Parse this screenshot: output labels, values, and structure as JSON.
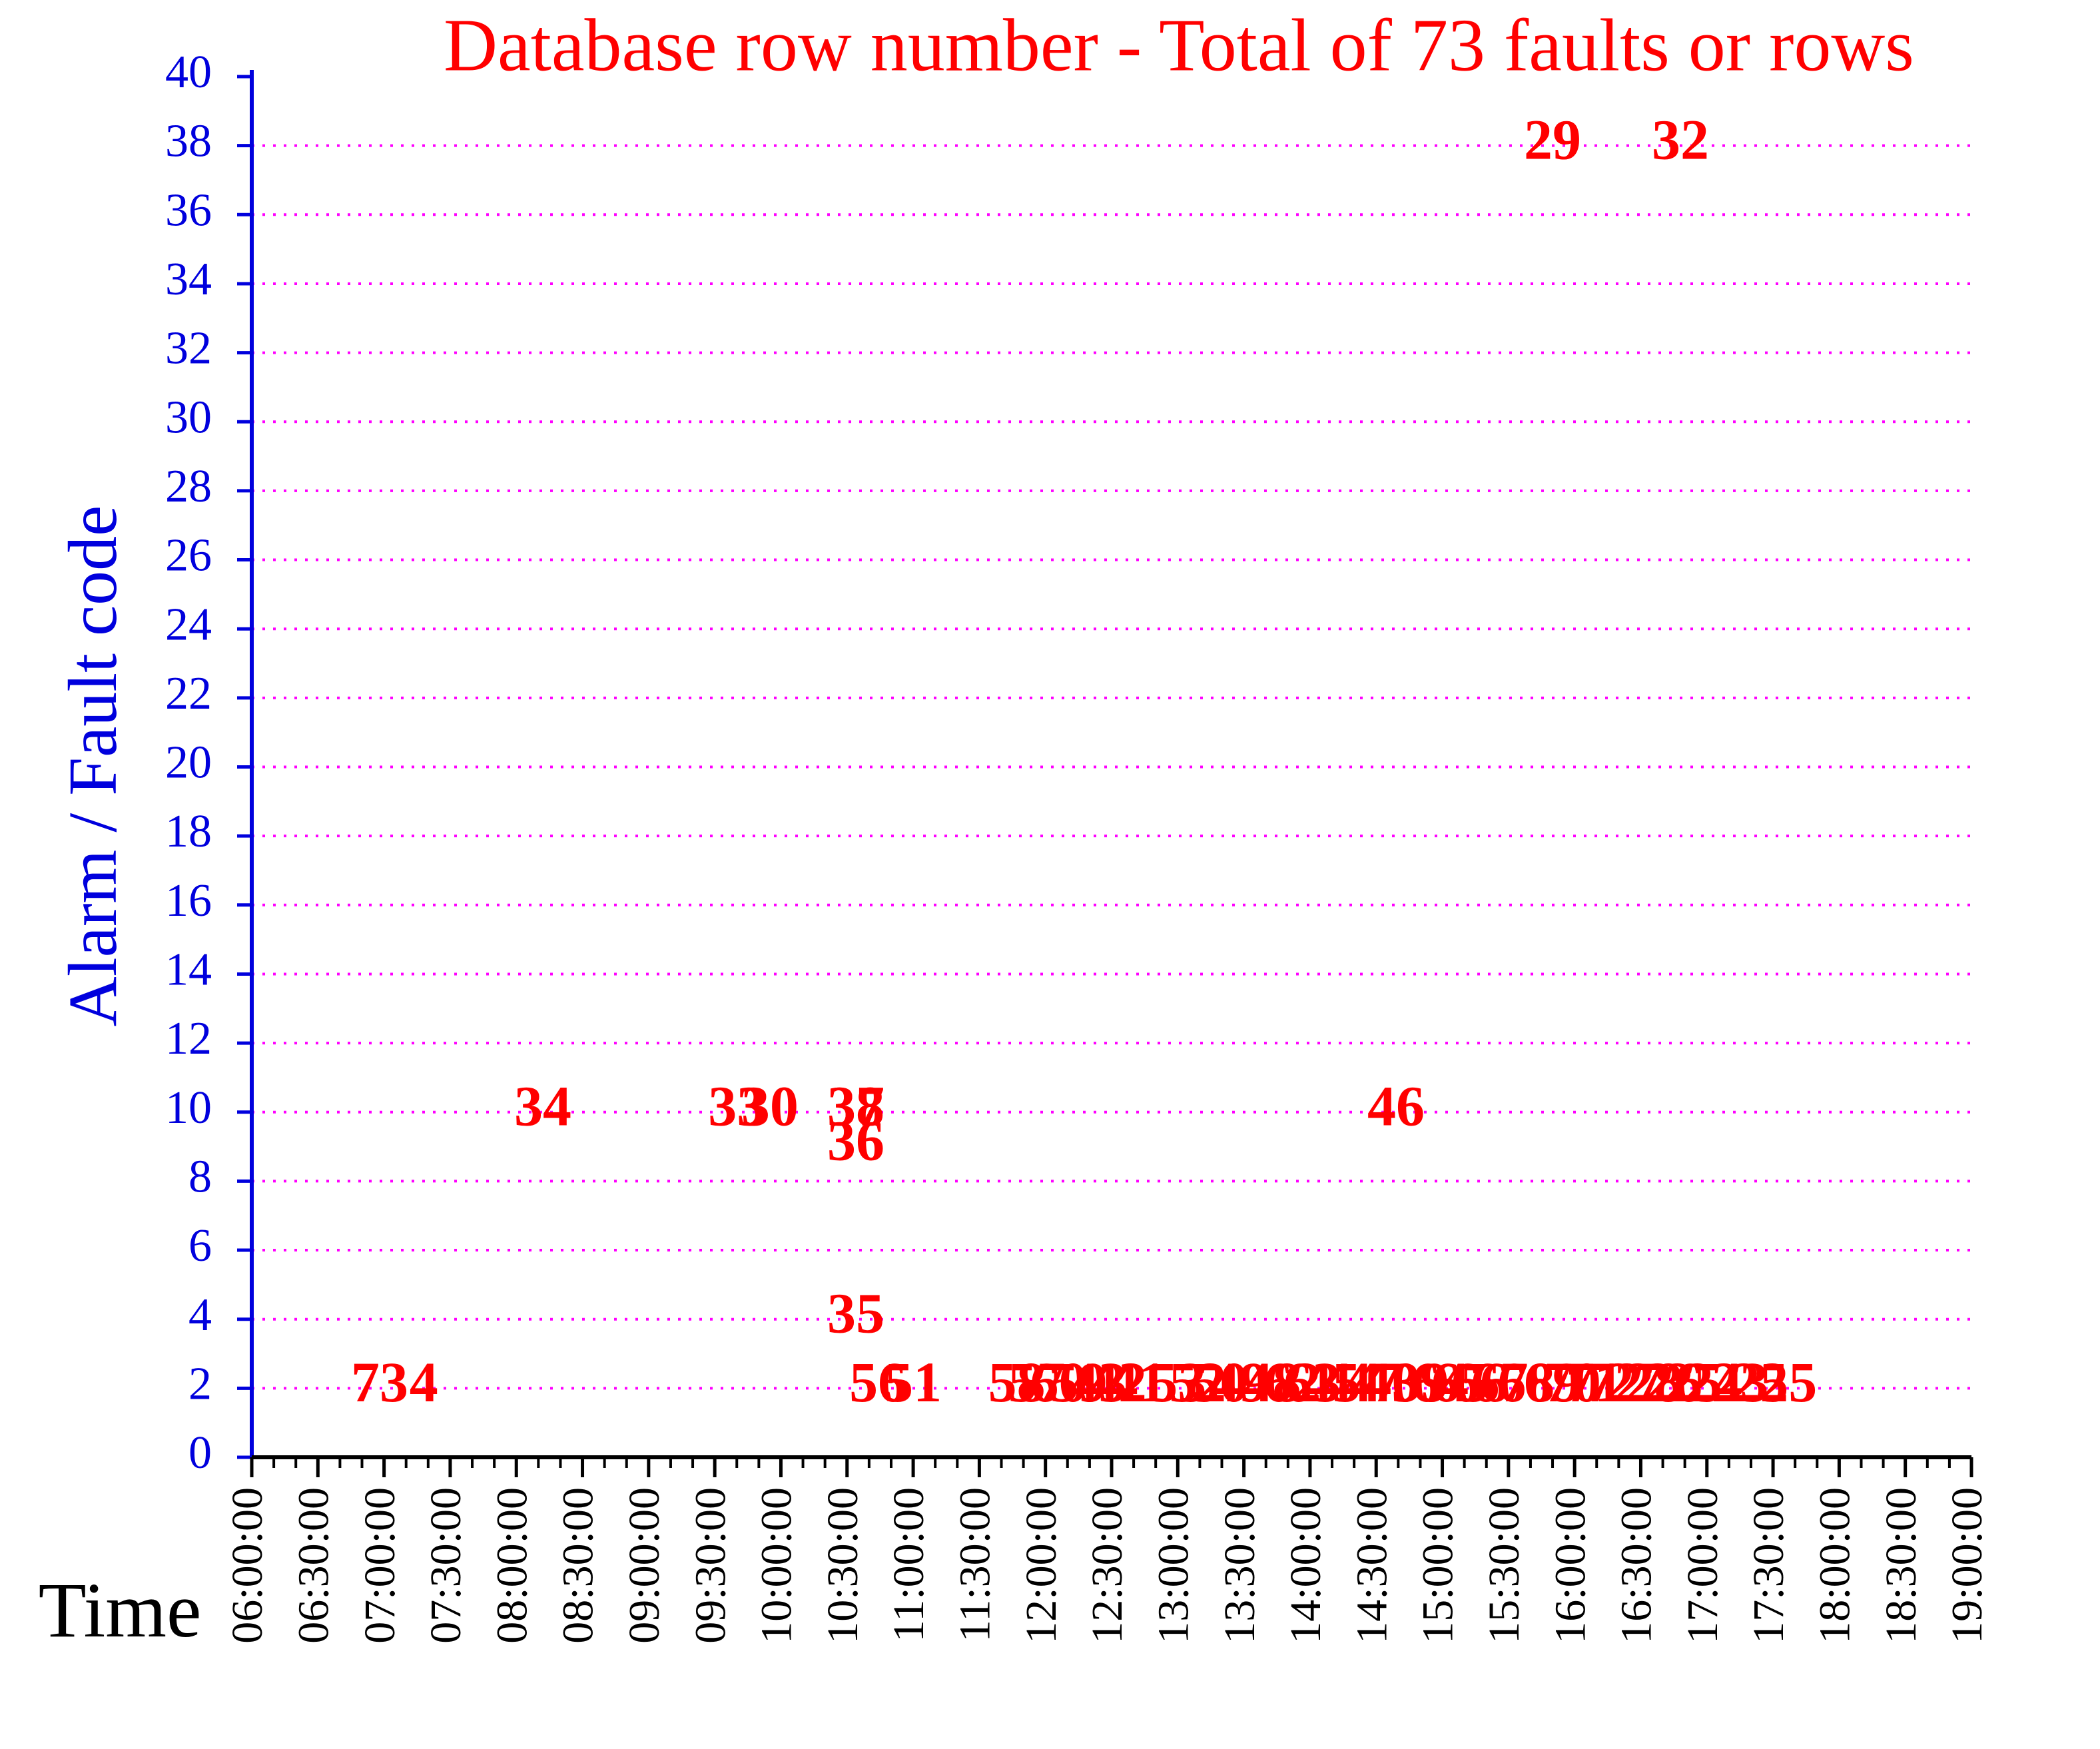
{
  "chart_data": {
    "type": "scatter",
    "title": "Database row number - Total of 73 faults or rows",
    "x_label": "Time",
    "y_label": "Alarm / Fault code",
    "label_color": "#ff0000",
    "axis_color": "#0000dd",
    "grid_color": "#ff00ff",
    "grid": true,
    "xlim": [
      "06:00:00",
      "19:00:00"
    ],
    "xticks": [
      "06:00:00",
      "06:30:00",
      "07:00:00",
      "07:30:00",
      "08:00:00",
      "08:30:00",
      "09:00:00",
      "09:30:00",
      "10:00:00",
      "10:30:00",
      "11:00:00",
      "11:30:00",
      "12:00:00",
      "12:30:00",
      "13:00:00",
      "13:30:00",
      "14:00:00",
      "14:30:00",
      "15:00:00",
      "15:30:00",
      "16:00:00",
      "16:30:00",
      "17:00:00",
      "17:30:00",
      "18:00:00",
      "18:30:00",
      "19:00:00"
    ],
    "ylim": [
      0,
      40
    ],
    "yticks": [
      0,
      2,
      4,
      6,
      8,
      10,
      12,
      14,
      16,
      18,
      20,
      22,
      24,
      26,
      28,
      30,
      32,
      34,
      36,
      38,
      40
    ],
    "x": [
      "06:58:00",
      "07:18:00",
      "08:12:00",
      "09:40:00",
      "09:55:00",
      "10:34:00",
      "10:34:00",
      "10:34:00",
      "10:34:00",
      "10:44:00",
      "11:00:00",
      "14:39:00",
      "15:50:00",
      "16:48:00",
      "11:47:00",
      "11:56:00",
      "12:06:00",
      "12:15:00",
      "12:24:00",
      "12:33:00",
      "12:42:00",
      "13:00:00",
      "13:09:00",
      "13:19:00",
      "13:28:00",
      "13:43:00",
      "13:52:00",
      "14:01:00",
      "14:10:00",
      "14:19:00",
      "14:28:00",
      "14:37:00",
      "14:50:00",
      "14:59:00",
      "15:08:00",
      "15:17:00",
      "15:26:00",
      "15:38:00",
      "15:50:00",
      "15:59:00",
      "16:09:00",
      "16:18:00",
      "16:27:00",
      "16:36:00",
      "16:45:00",
      "16:54:00",
      "17:03:00",
      "17:15:00",
      "17:24:00",
      "17:37:00"
    ],
    "values": [
      2,
      2,
      10,
      10,
      10,
      10,
      10,
      9,
      4,
      2,
      2,
      10,
      38,
      38,
      2,
      2,
      2,
      2,
      2,
      2,
      2,
      2,
      2,
      2,
      2,
      2,
      2,
      2,
      2,
      2,
      2,
      2,
      2,
      2,
      2,
      2,
      2,
      2,
      2,
      2,
      2,
      2,
      2,
      2,
      2,
      2,
      2,
      2,
      2,
      2
    ],
    "labels": [
      73,
      4,
      34,
      33,
      30,
      37,
      38,
      36,
      35,
      56,
      51,
      46,
      29,
      32,
      58,
      57,
      60,
      59,
      43,
      42,
      41,
      53,
      52,
      50,
      49,
      48,
      62,
      63,
      45,
      44,
      47,
      40,
      39,
      64,
      65,
      66,
      67,
      68,
      69,
      70,
      71,
      72,
      27,
      28,
      26,
      25,
      24,
      23,
      22,
      55
    ]
  }
}
